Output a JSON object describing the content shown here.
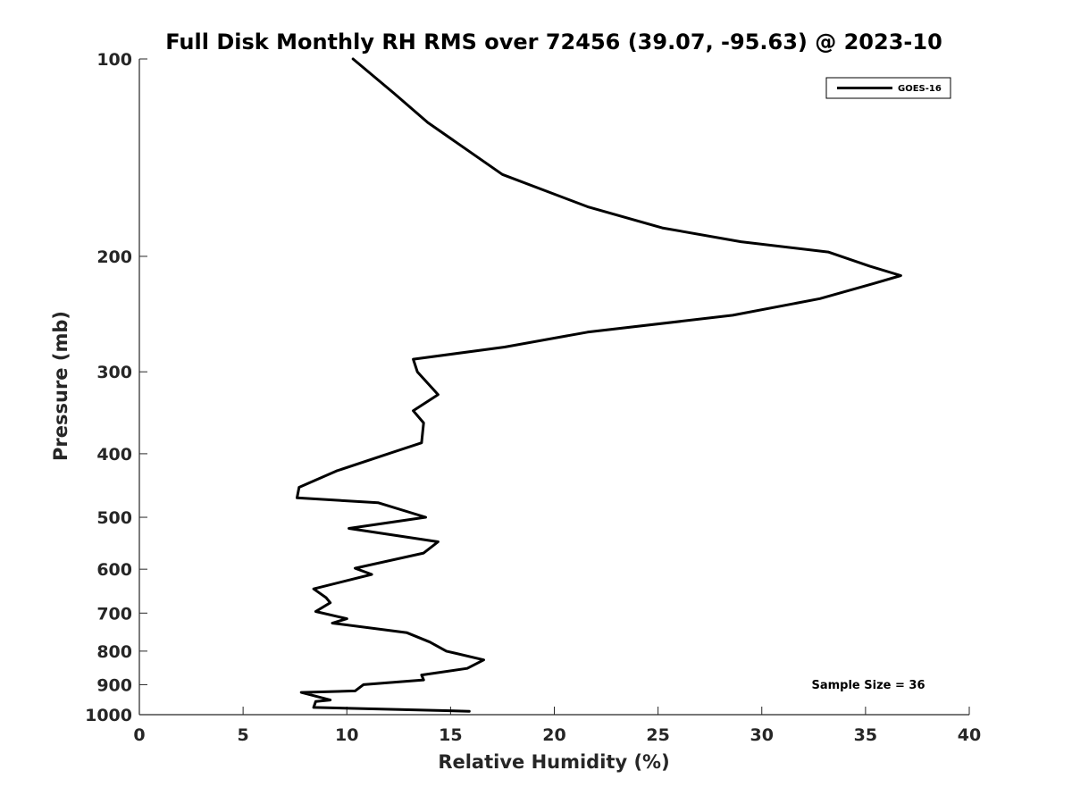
{
  "chart_data": {
    "type": "line",
    "title": "Full Disk Monthly RH RMS over 72456 (39.07, -95.63) @ 2023-10",
    "xlabel": "Relative Humidity (%)",
    "ylabel": "Pressure (mb)",
    "xlim": [
      0,
      40
    ],
    "ylim": [
      100,
      1000
    ],
    "y_scale": "log",
    "y_inverted": true,
    "x_ticks": [
      0,
      5,
      10,
      15,
      20,
      25,
      30,
      35,
      40
    ],
    "y_ticks": [
      100,
      200,
      300,
      400,
      500,
      600,
      700,
      800,
      900,
      1000
    ],
    "grid": false,
    "legend": {
      "placement": "top-right",
      "entries": [
        "GOES-16"
      ]
    },
    "annotation": "Sample Size = 36",
    "series": [
      {
        "name": "GOES-16",
        "color": "#000000",
        "x": [
          10.3,
          12.3,
          13.9,
          17.5,
          21.6,
          25.2,
          29.0,
          33.2,
          35.2,
          36.7,
          35.4,
          32.8,
          28.6,
          21.6,
          17.6,
          13.2,
          13.4,
          14.4,
          13.2,
          13.7,
          13.6,
          12.0,
          9.5,
          7.7,
          7.6,
          11.5,
          13.8,
          10.1,
          14.4,
          13.7,
          10.4,
          11.2,
          8.4,
          9.0,
          9.2,
          8.5,
          10.0,
          9.3,
          12.9,
          14.0,
          14.8,
          16.6,
          15.8,
          13.6,
          13.7,
          10.8,
          10.4,
          7.8,
          9.2,
          8.5,
          8.4,
          15.9
        ],
        "y": [
          100,
          113,
          125,
          150,
          168,
          181,
          190,
          197,
          207,
          214,
          220,
          232,
          246,
          261,
          275,
          287,
          300,
          325,
          344,
          359,
          385,
          400,
          425,
          450,
          467,
          475,
          500,
          520,
          545,
          567,
          598,
          611,
          643,
          663,
          675,
          696,
          714,
          725,
          750,
          775,
          800,
          825,
          850,
          870,
          885,
          900,
          920,
          925,
          950,
          955,
          975,
          988
        ]
      }
    ]
  }
}
